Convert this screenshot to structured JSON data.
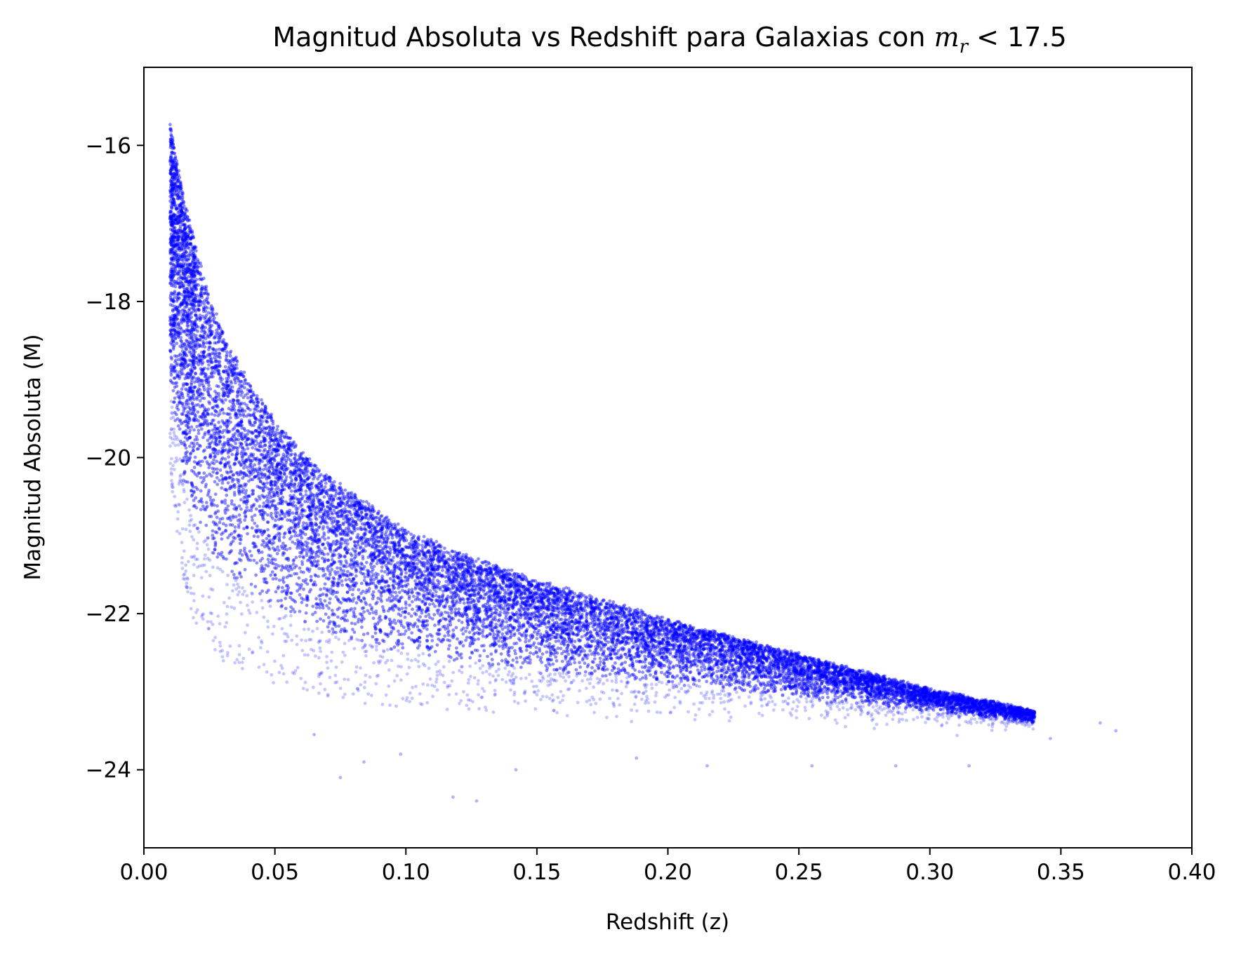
{
  "chart_data": {
    "type": "scatter",
    "title": {
      "prefix": "Magnitud Absoluta vs Redshift para Galaxias con ",
      "math_var": "m",
      "math_sub": "r",
      "suffix": " < 17.5"
    },
    "xlabel": "Redshift (z)",
    "ylabel": "Magnitud Absoluta (M)",
    "xlim": [
      0.0,
      0.4
    ],
    "ylim": [
      -15.0,
      -25.0
    ],
    "y_inverted": true,
    "xticks": [
      0.0,
      0.05,
      0.1,
      0.15,
      0.2,
      0.25,
      0.3,
      0.35,
      0.4
    ],
    "xtick_labels": [
      "0.00",
      "0.05",
      "0.10",
      "0.15",
      "0.20",
      "0.25",
      "0.30",
      "0.35",
      "0.40"
    ],
    "yticks": [
      -16,
      -18,
      -20,
      -22,
      -24
    ],
    "ytick_labels": [
      "−16",
      "−18",
      "−20",
      "−22",
      "−24"
    ],
    "grid": false,
    "legend": "none",
    "marker_color": "#0000ff",
    "marker_alpha": 0.15,
    "series_envelope": {
      "description_of_shape": "faint-galaxy boundary",
      "z_min": 0.01,
      "faint_limit_points": [
        [
          0.01,
          -15.7
        ],
        [
          0.015,
          -16.6
        ],
        [
          0.02,
          -17.3
        ],
        [
          0.025,
          -17.9
        ],
        [
          0.03,
          -18.35
        ],
        [
          0.04,
          -19.0
        ],
        [
          0.05,
          -19.5
        ],
        [
          0.06,
          -19.9
        ],
        [
          0.07,
          -20.2
        ],
        [
          0.08,
          -20.45
        ],
        [
          0.1,
          -20.9
        ],
        [
          0.12,
          -21.2
        ],
        [
          0.15,
          -21.55
        ],
        [
          0.18,
          -21.85
        ],
        [
          0.2,
          -22.05
        ],
        [
          0.25,
          -22.5
        ],
        [
          0.3,
          -22.95
        ],
        [
          0.33,
          -23.15
        ],
        [
          0.37,
          -23.45
        ]
      ],
      "bright_edge_points": [
        [
          0.01,
          -20.0
        ],
        [
          0.015,
          -21.3
        ],
        [
          0.02,
          -21.9
        ],
        [
          0.03,
          -22.3
        ],
        [
          0.05,
          -22.6
        ],
        [
          0.08,
          -22.85
        ],
        [
          0.12,
          -23.0
        ],
        [
          0.16,
          -23.05
        ],
        [
          0.2,
          -23.1
        ],
        [
          0.25,
          -23.2
        ],
        [
          0.3,
          -23.3
        ],
        [
          0.37,
          -23.5
        ]
      ],
      "outliers": [
        [
          0.075,
          -24.1
        ],
        [
          0.118,
          -24.35
        ],
        [
          0.127,
          -24.4
        ],
        [
          0.142,
          -24.0
        ],
        [
          0.084,
          -23.9
        ],
        [
          0.215,
          -23.95
        ],
        [
          0.255,
          -23.95
        ],
        [
          0.287,
          -23.95
        ],
        [
          0.315,
          -23.95
        ],
        [
          0.346,
          -23.6
        ],
        [
          0.365,
          -23.4
        ],
        [
          0.371,
          -23.5
        ],
        [
          0.188,
          -23.85
        ],
        [
          0.098,
          -23.8
        ],
        [
          0.065,
          -23.55
        ]
      ]
    }
  }
}
